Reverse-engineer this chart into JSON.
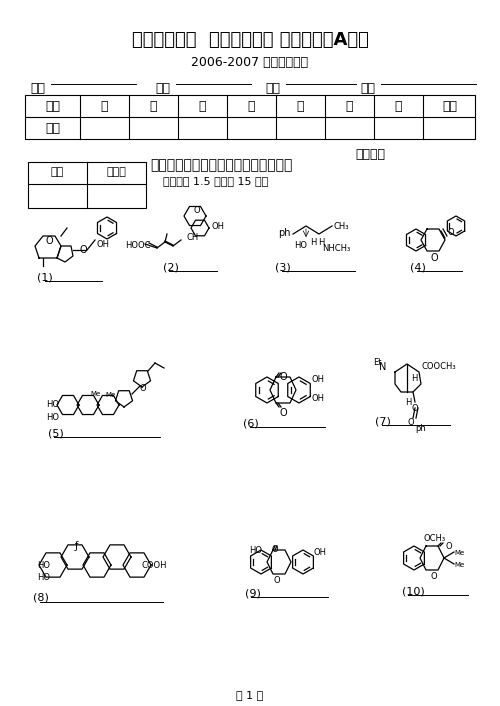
{
  "title_cn": "中国药科大学",
  "title_en": "  天然药物化学 期末试卷（A卷）",
  "subtitle": "2006-2007 学年第二学期",
  "field1": "专业",
  "field2": "班级",
  "field3": "学号",
  "field4": "姓名",
  "table_headers": [
    "题号",
    "一",
    "二",
    "三",
    "四",
    "五",
    "六",
    "七",
    "总分"
  ],
  "table_row2_label": "得分",
  "score_label": "核分人：",
  "score_box_label1": "得分",
  "score_box_label2": "评卷人",
  "section1_title": "一、写出以下各化合物的二级结构类型",
  "section1_sub": "（每小题 1.5 分，共 15 分）",
  "labels": [
    "(1)",
    "(2)",
    "(3)",
    "(4)",
    "(5)",
    "(6)",
    "(7)",
    "(8)",
    "(9)",
    "(10)"
  ],
  "page": "第 1 页",
  "bg": "#ffffff",
  "fg": "#000000"
}
